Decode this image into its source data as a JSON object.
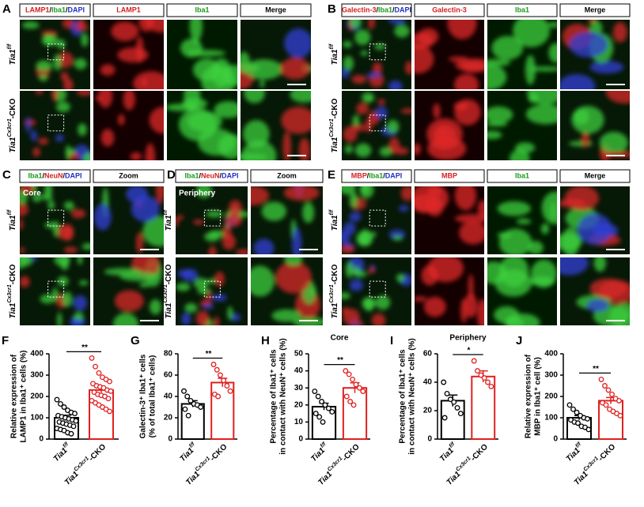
{
  "image_panels": [
    {
      "letter": "A",
      "headers": [
        [
          {
            "text": "LAMP1",
            "color": "#d42020"
          },
          {
            "text": "/"
          },
          {
            "text": "Iba1",
            "color": "#1a9a1a"
          },
          {
            "text": "/"
          },
          {
            "text": "DAPI",
            "color": "#2030c0"
          }
        ],
        [
          {
            "text": "LAMP1",
            "color": "#d42020"
          }
        ],
        [
          {
            "text": "Iba1",
            "color": "#1a9a1a"
          }
        ],
        [
          {
            "text": "Merge"
          }
        ]
      ],
      "rows": [
        {
          "base": "Tia1",
          "sup": "f/f"
        },
        {
          "base": "Tia1",
          "sup": "Cx3cr1",
          "suffix": "-CKO"
        }
      ]
    },
    {
      "letter": "B",
      "headers": [
        [
          {
            "text": "Galectin-3",
            "color": "#d42020"
          },
          {
            "text": "/"
          },
          {
            "text": "Iba1",
            "color": "#1a9a1a"
          },
          {
            "text": "/"
          },
          {
            "text": "DAPI",
            "color": "#2030c0"
          }
        ],
        [
          {
            "text": "Galectin-3",
            "color": "#d42020"
          }
        ],
        [
          {
            "text": "Iba1",
            "color": "#1a9a1a"
          }
        ],
        [
          {
            "text": "Merge"
          }
        ]
      ],
      "rows": [
        {
          "base": "Tia1",
          "sup": "f/f"
        },
        {
          "base": "Tia1",
          "sup": "Cx3cr1",
          "suffix": "-CKO"
        }
      ]
    },
    {
      "letter": "C",
      "inset": "Core",
      "headers": [
        [
          {
            "text": "Iba1",
            "color": "#1a9a1a"
          },
          {
            "text": "/"
          },
          {
            "text": "NeuN",
            "color": "#d42020"
          },
          {
            "text": "/"
          },
          {
            "text": "DAPI",
            "color": "#2030c0"
          }
        ],
        [
          {
            "text": "Zoom"
          }
        ]
      ],
      "rows": [
        {
          "base": "Tia1",
          "sup": "f/f"
        },
        {
          "base": "Tia1",
          "sup": "Cx3cr1",
          "suffix": "-CKO"
        }
      ]
    },
    {
      "letter": "D",
      "inset": "Periphery",
      "headers": [
        [
          {
            "text": "Iba1",
            "color": "#1a9a1a"
          },
          {
            "text": "/"
          },
          {
            "text": "NeuN",
            "color": "#d42020"
          },
          {
            "text": "/"
          },
          {
            "text": "DAPI",
            "color": "#2030c0"
          }
        ],
        [
          {
            "text": "Zoom"
          }
        ]
      ],
      "rows": [
        {
          "base": "Tia1",
          "sup": "f/f"
        },
        {
          "base": "Tia1",
          "sup": "Cx3cr1",
          "suffix": "-CKO"
        }
      ]
    },
    {
      "letter": "E",
      "headers": [
        [
          {
            "text": "MBP",
            "color": "#d42020"
          },
          {
            "text": "/"
          },
          {
            "text": "Iba1",
            "color": "#1a9a1a"
          },
          {
            "text": "/"
          },
          {
            "text": "DAPI",
            "color": "#2030c0"
          }
        ],
        [
          {
            "text": "MBP",
            "color": "#d42020"
          }
        ],
        [
          {
            "text": "Iba1",
            "color": "#1a9a1a"
          }
        ],
        [
          {
            "text": "Merge"
          }
        ]
      ],
      "rows": [
        {
          "base": "Tia1",
          "sup": "f/f"
        },
        {
          "base": "Tia1",
          "sup": "Cx3cr1",
          "suffix": "-CKO"
        }
      ]
    }
  ],
  "chart_data": [
    {
      "type": "bar",
      "panel": "F",
      "ylabel": [
        "Relative expression of",
        "LAMP1 in Iba1⁺ cells (%)"
      ],
      "categories": [
        {
          "base": "Tia1",
          "sup": "f/f"
        },
        {
          "base": "Tia1",
          "sup": "Cx3cr1",
          "suffix": "-CKO"
        }
      ],
      "values": [
        100,
        230
      ],
      "errors": [
        12,
        12
      ],
      "colors": [
        "#000000",
        "#e02020"
      ],
      "points": [
        [
          185,
          165,
          150,
          135,
          125,
          120,
          110,
          105,
          100,
          95,
          90,
          85,
          80,
          75,
          70,
          65,
          60,
          50,
          45,
          40,
          30,
          25
        ],
        [
          380,
          340,
          310,
          290,
          280,
          270,
          260,
          250,
          245,
          240,
          230,
          225,
          220,
          210,
          205,
          200,
          190,
          180,
          170,
          160,
          150,
          140,
          130
        ]
      ],
      "significance": "**",
      "ylim": [
        0,
        400
      ],
      "yticks": [
        0,
        100,
        200,
        300,
        400
      ]
    },
    {
      "type": "bar",
      "panel": "G",
      "ylabel": [
        "Galectin-3⁺ Iba1⁺ cells",
        "(% of total Iba1⁺ cells)"
      ],
      "categories": [
        {
          "base": "Tia1",
          "sup": "f/f"
        },
        {
          "base": "Tia1",
          "sup": "Cx3cr1",
          "suffix": "-CKO"
        }
      ],
      "values": [
        33,
        53
      ],
      "errors": [
        3,
        4
      ],
      "colors": [
        "#000000",
        "#e02020"
      ],
      "points": [
        [
          45,
          40,
          36,
          33,
          32,
          30,
          28,
          22
        ],
        [
          70,
          65,
          60,
          55,
          50,
          45,
          42,
          40
        ]
      ],
      "significance": "**",
      "ylim": [
        0,
        80
      ],
      "yticks": [
        0,
        20,
        40,
        60,
        80
      ]
    },
    {
      "type": "bar",
      "panel": "H",
      "title": "Core",
      "ylabel": [
        "Percentage of Iba1⁺ cells",
        "in contact with NeuN⁺ cells (%)"
      ],
      "categories": [
        {
          "base": "Tia1",
          "sup": "f/f"
        },
        {
          "base": "Tia1",
          "sup": "Cx3cr1",
          "suffix": "-CKO"
        }
      ],
      "values": [
        19,
        30
      ],
      "errors": [
        2,
        3
      ],
      "colors": [
        "#000000",
        "#e02020"
      ],
      "points": [
        [
          28,
          25,
          22,
          20,
          18,
          16,
          15,
          13,
          10
        ],
        [
          40,
          38,
          35,
          32,
          30,
          28,
          25,
          22,
          20
        ]
      ],
      "significance": "**",
      "ylim": [
        0,
        50
      ],
      "yticks": [
        0,
        10,
        20,
        30,
        40,
        50
      ]
    },
    {
      "type": "bar",
      "panel": "I",
      "title": "Periphery",
      "ylabel": [
        "Percentage of Iba1⁺ cells",
        "in contact with NeuN⁺ cells (%)"
      ],
      "categories": [
        {
          "base": "Tia1",
          "sup": "f/f"
        },
        {
          "base": "Tia1",
          "sup": "Cx3cr1",
          "suffix": "-CKO"
        }
      ],
      "values": [
        27,
        44
      ],
      "errors": [
        4,
        4
      ],
      "colors": [
        "#000000",
        "#e02020"
      ],
      "points": [
        [
          40,
          32,
          28,
          26,
          22,
          18,
          15
        ],
        [
          55,
          48,
          45,
          43,
          40,
          37
        ]
      ],
      "significance": "*",
      "ylim": [
        0,
        60
      ],
      "yticks": [
        0,
        20,
        40,
        60
      ]
    },
    {
      "type": "bar",
      "panel": "J",
      "ylabel": [
        "Relative expression of",
        "MBP in Iba1⁺ cell (%)"
      ],
      "categories": [
        {
          "base": "Tia1",
          "sup": "f/f"
        },
        {
          "base": "Tia1",
          "sup": "Cx3cr1",
          "suffix": "-CKO"
        }
      ],
      "values": [
        100,
        180
      ],
      "errors": [
        10,
        15
      ],
      "colors": [
        "#000000",
        "#e02020"
      ],
      "points": [
        [
          160,
          140,
          125,
          110,
          100,
          95,
          90,
          80,
          75,
          60,
          55,
          45
        ],
        [
          280,
          250,
          230,
          210,
          190,
          180,
          170,
          160,
          140,
          130,
          120,
          110
        ]
      ],
      "significance": "**",
      "ylim": [
        0,
        400
      ],
      "yticks": [
        0,
        100,
        200,
        300,
        400
      ]
    }
  ]
}
